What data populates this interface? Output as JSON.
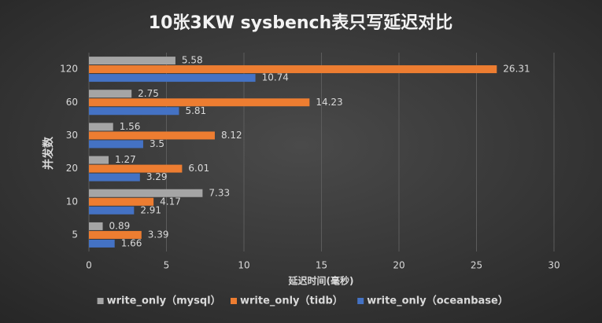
{
  "chart_data": {
    "type": "hbar",
    "title": "10张3KW sysbench表只写延迟对比",
    "x_label": "延迟时间(毫秒)",
    "y_label": "并发数",
    "categories": [
      "5",
      "10",
      "20",
      "30",
      "60",
      "120"
    ],
    "series": [
      {
        "name": "write_only（mysql）",
        "color": "#a5a5a5",
        "values": [
          0.89,
          7.33,
          1.27,
          1.56,
          2.75,
          5.58
        ]
      },
      {
        "name": "write_only（tidb）",
        "color": "#ed7d31",
        "values": [
          3.39,
          4.17,
          6.01,
          8.12,
          14.23,
          26.31
        ]
      },
      {
        "name": "write_only（oceanbase）",
        "color": "#4472c4",
        "values": [
          1.66,
          2.91,
          3.29,
          3.5,
          5.81,
          10.74
        ]
      }
    ],
    "xlim": [
      0,
      30
    ],
    "xticks": [
      0,
      5,
      10,
      15,
      20,
      25,
      30
    ],
    "grid": true,
    "legend": "bottom"
  }
}
